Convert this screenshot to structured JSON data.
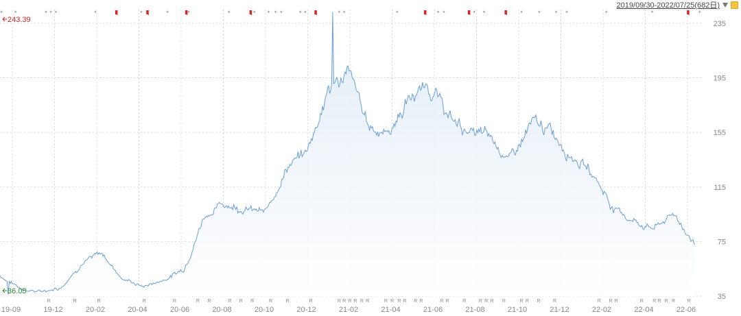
{
  "range_label": "2019/09/30-2022/07/25(682日)",
  "colors": {
    "line": "#6a9ed2",
    "fill_top": "#dde9f5",
    "fill_bottom": "#ffffff",
    "high": "#cc2222",
    "low": "#2a8a2a",
    "grid": "#d8d8d8",
    "flag": "#dd2222"
  },
  "chart_data": {
    "type": "area",
    "title": "",
    "xlabel": "",
    "ylabel": "",
    "ylim": [
      35,
      245
    ],
    "yticks": [
      35,
      75,
      115,
      155,
      195,
      235
    ],
    "x_tick_labels": [
      "19-09",
      "19-12",
      "20-02",
      "20-04",
      "20-06",
      "20-08",
      "20-10",
      "20-12",
      "21-02",
      "21-04",
      "21-06",
      "21-08",
      "21-10",
      "21-12",
      "22-02",
      "22-04",
      "22-06"
    ],
    "high_label": "243.39",
    "low_label": "36.05",
    "series": [
      {
        "x": [
          "2019-09",
          "2019-10",
          "2019-11",
          "2019-12",
          "2020-01",
          "2020-02",
          "2020-03",
          "2020-04",
          "2020-05",
          "2020-06",
          "2020-07",
          "2020-08",
          "2020-09",
          "2020-10",
          "2020-11",
          "2020-12",
          "2021-01",
          "2021-02",
          "2021-03",
          "2021-04",
          "2021-05",
          "2021-06",
          "2021-07",
          "2021-08",
          "2021-09",
          "2021-10",
          "2021-11",
          "2021-12",
          "2022-01",
          "2022-02",
          "2022-03",
          "2022-04",
          "2022-05",
          "2022-06",
          "2022-07"
        ],
        "values": [
          50,
          41,
          38,
          42,
          60,
          66,
          48,
          42,
          47,
          55,
          95,
          103,
          100,
          95,
          130,
          140,
          185,
          200,
          160,
          155,
          180,
          190,
          165,
          155,
          150,
          135,
          160,
          155,
          140,
          125,
          100,
          90,
          85,
          95,
          73
        ]
      }
    ],
    "markers": [
      {
        "x": 0.002,
        "t": "*"
      },
      {
        "x": 0.022,
        "t": "*"
      },
      {
        "x": 0.065,
        "t": "*"
      },
      {
        "x": 0.072,
        "t": "*"
      },
      {
        "x": 0.079,
        "t": "*"
      },
      {
        "x": 0.135,
        "t": "*"
      },
      {
        "x": 0.163,
        "t": "f"
      },
      {
        "x": 0.2,
        "t": "*"
      },
      {
        "x": 0.207,
        "t": "f"
      },
      {
        "x": 0.237,
        "t": "*"
      },
      {
        "x": 0.262,
        "t": "f"
      },
      {
        "x": 0.267,
        "t": "*"
      },
      {
        "x": 0.324,
        "t": "*"
      },
      {
        "x": 0.353,
        "t": "f"
      },
      {
        "x": 0.36,
        "t": "*"
      },
      {
        "x": 0.38,
        "t": "*"
      },
      {
        "x": 0.39,
        "t": "*"
      },
      {
        "x": 0.398,
        "t": "*"
      },
      {
        "x": 0.425,
        "t": "*"
      },
      {
        "x": 0.432,
        "t": "*"
      },
      {
        "x": 0.445,
        "t": "f"
      },
      {
        "x": 0.48,
        "t": "*"
      },
      {
        "x": 0.487,
        "t": "*"
      },
      {
        "x": 0.562,
        "t": "*"
      },
      {
        "x": 0.6,
        "t": "f"
      },
      {
        "x": 0.62,
        "t": "*"
      },
      {
        "x": 0.628,
        "t": "*"
      },
      {
        "x": 0.662,
        "t": "f"
      },
      {
        "x": 0.671,
        "t": "*"
      },
      {
        "x": 0.685,
        "t": "*"
      },
      {
        "x": 0.714,
        "t": "f"
      },
      {
        "x": 0.738,
        "t": "*"
      },
      {
        "x": 0.763,
        "t": "*"
      },
      {
        "x": 0.787,
        "t": "*"
      },
      {
        "x": 0.802,
        "t": "*"
      },
      {
        "x": 0.858,
        "t": "*"
      },
      {
        "x": 0.923,
        "t": "*"
      },
      {
        "x": 0.972,
        "t": "f"
      },
      {
        "x": 0.99,
        "t": "*"
      }
    ],
    "bottom_marks": [
      0.069,
      0.106,
      0.14,
      0.204,
      0.247,
      0.28,
      0.296,
      0.325,
      0.341,
      0.357,
      0.383,
      0.407,
      0.44,
      0.48,
      0.487,
      0.495,
      0.503,
      0.512,
      0.52,
      0.546,
      0.555,
      0.565,
      0.573,
      0.588,
      0.596,
      0.625,
      0.633,
      0.657,
      0.68,
      0.688,
      0.696,
      0.713,
      0.738,
      0.746,
      0.762,
      0.785,
      0.848,
      0.864,
      0.872,
      0.908,
      0.926,
      0.933,
      0.943,
      0.953,
      0.975
    ]
  }
}
